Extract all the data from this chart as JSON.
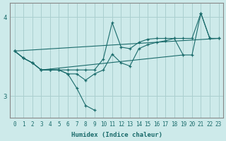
{
  "title": "",
  "xlabel": "Humidex (Indice chaleur)",
  "ylabel": "",
  "bg_color": "#cdeaea",
  "grid_color": "#aacfcf",
  "line_color": "#1a6b6b",
  "xlim": [
    -0.5,
    23.5
  ],
  "ylim": [
    2.72,
    4.18
  ],
  "xticks": [
    0,
    1,
    2,
    3,
    4,
    5,
    6,
    7,
    8,
    9,
    10,
    11,
    12,
    13,
    14,
    15,
    16,
    17,
    18,
    19,
    20,
    21,
    22,
    23
  ],
  "yticks": [
    3,
    4
  ],
  "line_zigzag_x": [
    0,
    1,
    2,
    3,
    4,
    5,
    6,
    7,
    8,
    9,
    10,
    11,
    12,
    13,
    14,
    15,
    16,
    17,
    18,
    19,
    20,
    21,
    22,
    23
  ],
  "line_zigzag_y": [
    3.57,
    3.48,
    3.42,
    3.33,
    3.33,
    3.33,
    3.33,
    3.33,
    3.33,
    3.33,
    3.47,
    3.93,
    3.62,
    3.6,
    3.68,
    3.72,
    3.73,
    3.73,
    3.73,
    3.73,
    3.73,
    4.05,
    3.73,
    3.73
  ],
  "line_dip_x": [
    0,
    1,
    2,
    3,
    4,
    5,
    6,
    7,
    8,
    9,
    10,
    11,
    12,
    13,
    14,
    15,
    16,
    17,
    18,
    19,
    20,
    21,
    22,
    23
  ],
  "line_dip_y": [
    3.57,
    3.48,
    3.42,
    3.33,
    3.33,
    3.33,
    3.28,
    3.28,
    3.2,
    3.28,
    3.33,
    3.53,
    3.42,
    3.38,
    3.6,
    3.65,
    3.68,
    3.7,
    3.73,
    3.52,
    3.52,
    4.05,
    3.73,
    3.73
  ],
  "line_down_x": [
    0,
    1,
    2,
    3,
    4,
    5,
    6,
    7,
    8,
    9
  ],
  "line_down_y": [
    3.57,
    3.48,
    3.42,
    3.33,
    3.33,
    3.33,
    3.28,
    3.1,
    2.88,
    2.82
  ],
  "line_trend1_x": [
    0,
    23
  ],
  "line_trend1_y": [
    3.57,
    3.73
  ],
  "line_trend2_x": [
    3,
    19
  ],
  "line_trend2_y": [
    3.33,
    3.52
  ]
}
